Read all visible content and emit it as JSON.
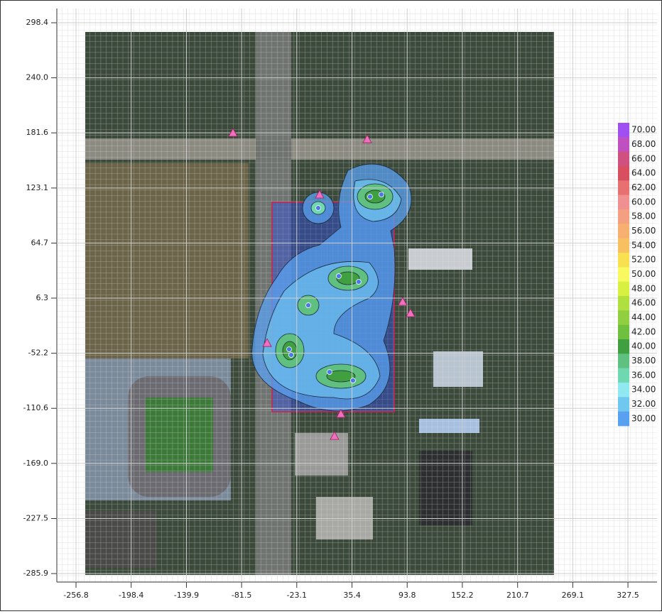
{
  "chart_data": {
    "type": "contour",
    "xlim": [
      -277.1,
      358.3
    ],
    "ylim": [
      -294.9,
      313.5
    ],
    "xticks": [
      -256.8,
      -198.4,
      -139.9,
      -81.5,
      -23.1,
      35.4,
      93.8,
      152.2,
      210.7,
      269.1,
      327.5
    ],
    "yticks": [
      298.4,
      {
        "value": 240,
        "label": "240.0"
      },
      181.6,
      123.1,
      64.7,
      6.3,
      -52.2,
      -110.6,
      {
        "value": -169,
        "label": "-169.0"
      },
      -227.5,
      -285.9
    ],
    "grid": true,
    "sources": {
      "color": "#4a78e8",
      "x": [
        -0.4,
        54.5,
        66.5,
        21.4,
        42.4,
        -10.9,
        -31.2,
        -29,
        11.6,
        36.4
      ],
      "y": [
        101.9,
        113.9,
        116.2,
        29.6,
        23.6,
        -1.3,
        -48,
        -54,
        -72.1,
        -81.1
      ]
    },
    "receptors": {
      "color": "#f070c0",
      "x": [
        -90.6,
        51.5,
        1.1,
        89,
        97.3,
        -54.5,
        23.6,
        16.9
      ],
      "y": [
        181.7,
        174.9,
        116.2,
        2.5,
        -9.6,
        -41.2,
        -116.5,
        -139.9
      ]
    },
    "colorbar": {
      "levels": [
        {
          "value": 70,
          "label": "70.00"
        },
        {
          "value": 68,
          "label": "68.00"
        },
        {
          "value": 66,
          "label": "66.00"
        },
        {
          "value": 64,
          "label": "64.00"
        },
        {
          "value": 62,
          "label": "62.00"
        },
        {
          "value": 60,
          "label": "60.00"
        },
        {
          "value": 58,
          "label": "58.00"
        },
        {
          "value": 56,
          "label": "56.00"
        },
        {
          "value": 54,
          "label": "54.00"
        },
        {
          "value": 52,
          "label": "52.00"
        },
        {
          "value": 50,
          "label": "50.00"
        },
        {
          "value": 48,
          "label": "48.00"
        },
        {
          "value": 46,
          "label": "46.00"
        },
        {
          "value": 44,
          "label": "44.00"
        },
        {
          "value": 42,
          "label": "42.00"
        },
        {
          "value": 40,
          "label": "40.00"
        },
        {
          "value": 38,
          "label": "38.00"
        },
        {
          "value": 36,
          "label": "36.00"
        },
        {
          "value": 34,
          "label": "34.00"
        },
        {
          "value": 32,
          "label": "32.00"
        },
        {
          "value": 30,
          "label": "30.00"
        }
      ],
      "colors": [
        "#a050f0",
        "#c050c0",
        "#d05080",
        "#d85060",
        "#e87070",
        "#f09090",
        "#f4a080",
        "#f8b070",
        "#f8c060",
        "#f8e050",
        "#f8f860",
        "#d8f040",
        "#b0e040",
        "#90d040",
        "#70c040",
        "#40a040",
        "#60c080",
        "#70d8b0",
        "#90e8f0",
        "#70c8f0",
        "#5aa0f0"
      ]
    }
  }
}
